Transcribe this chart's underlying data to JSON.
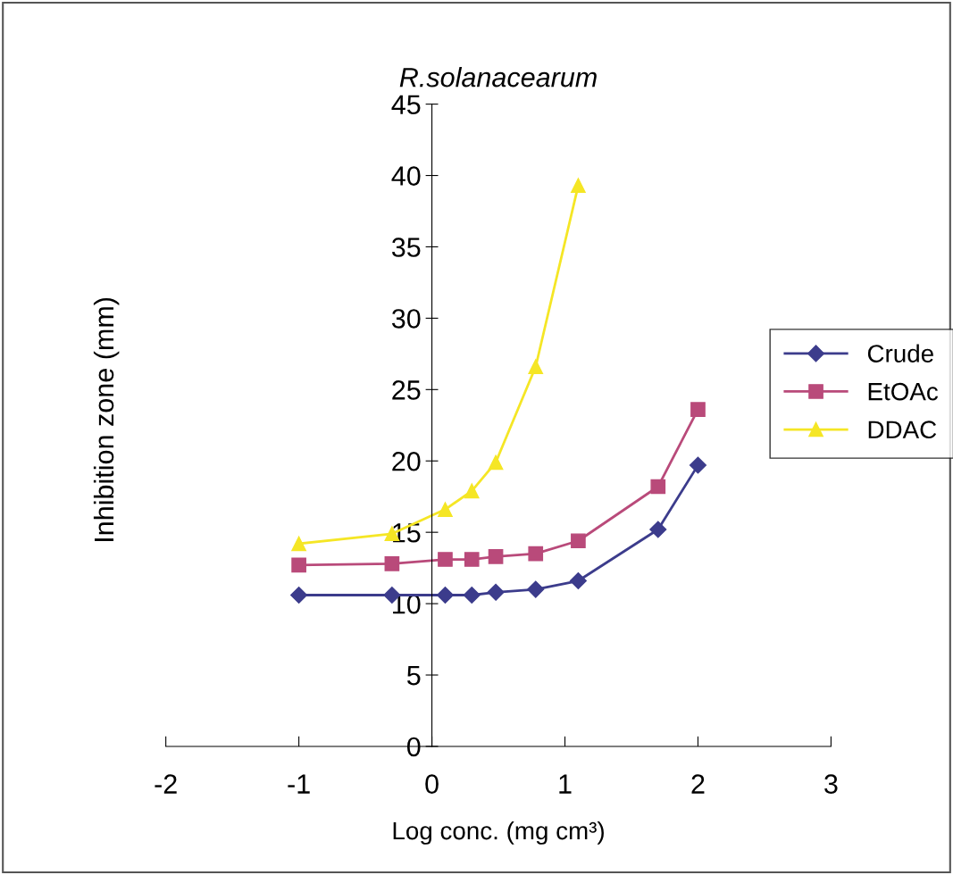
{
  "chart_data": {
    "type": "line",
    "title": "R.solanacearum",
    "xlabel": "Log conc. (mg cm³)",
    "ylabel": "Inhibition zone (mm)",
    "x": [
      -1,
      -0.3,
      0.1,
      0.3,
      0.48,
      0.78,
      1.1,
      1.7,
      2.0
    ],
    "series": [
      {
        "name": "Crude",
        "color": "#3c3c8c",
        "marker": "diamond",
        "values": [
          10.6,
          10.6,
          10.6,
          10.6,
          10.8,
          11.0,
          11.6,
          15.2,
          19.7
        ]
      },
      {
        "name": "EtOAc",
        "color": "#b94a7a",
        "marker": "square",
        "values": [
          12.7,
          12.8,
          13.1,
          13.1,
          13.3,
          13.5,
          14.4,
          18.2,
          23.6
        ]
      },
      {
        "name": "DDAC",
        "color": "#f5e625",
        "marker": "triangle",
        "values": [
          14.2,
          14.9,
          16.6,
          17.9,
          19.9,
          26.6,
          39.3,
          null,
          null
        ]
      }
    ],
    "xlim": [
      -2,
      3
    ],
    "xticks": [
      -2,
      -1,
      0,
      1,
      2,
      3
    ],
    "ylim": [
      0,
      45
    ],
    "yticks": [
      0,
      5,
      10,
      15,
      20,
      25,
      30,
      35,
      40,
      45
    ],
    "grid": false,
    "legend": "right",
    "line_style": "solid"
  }
}
